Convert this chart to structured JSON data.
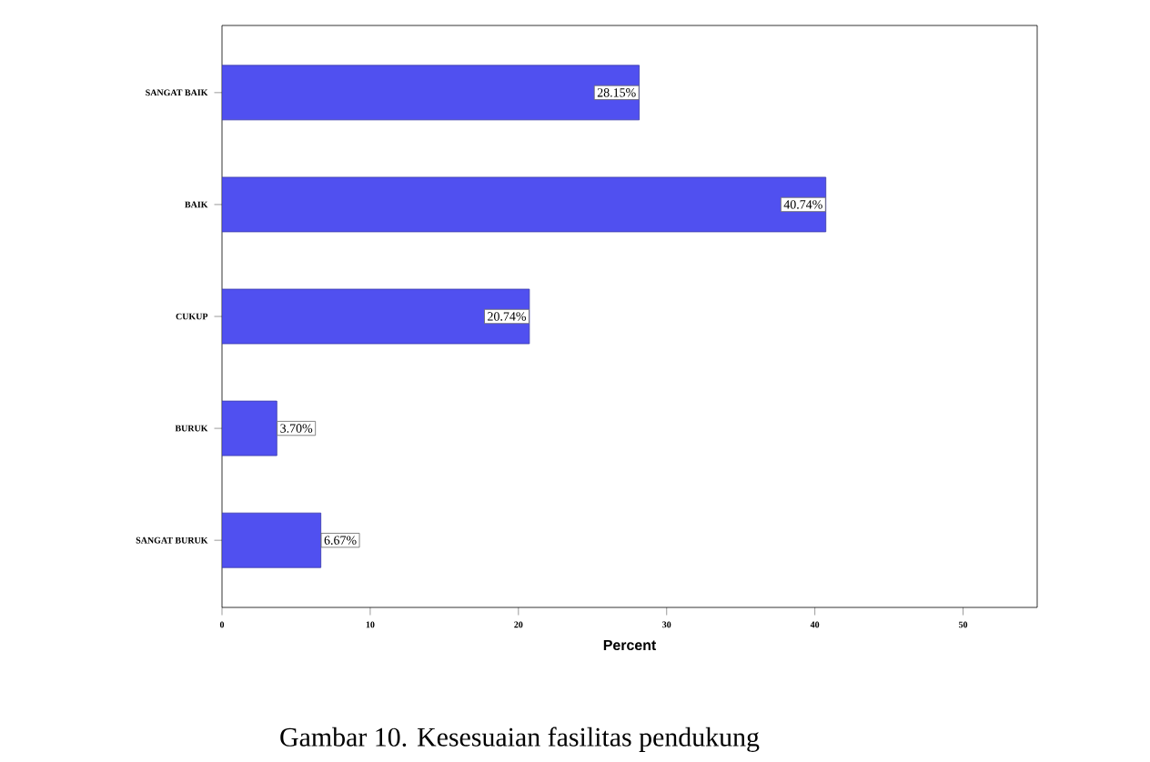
{
  "chart_data": {
    "type": "bar",
    "orientation": "horizontal",
    "categories": [
      "SANGAT BAIK",
      "BAIK",
      "CUKUP",
      "BURUK",
      "SANGAT BURUK"
    ],
    "values": [
      28.15,
      40.74,
      20.74,
      3.7,
      6.67
    ],
    "value_labels": [
      "28.15%",
      "40.74%",
      "20.74%",
      "3.70%",
      "6.67%"
    ],
    "color": "#5050f0",
    "xlim": [
      0,
      55
    ],
    "xticks": [
      0,
      10,
      20,
      30,
      40,
      50
    ],
    "xlabel": "Percent",
    "annotations": [
      "Gambar 10. Kesesuaian fasilitas pendukung"
    ]
  }
}
